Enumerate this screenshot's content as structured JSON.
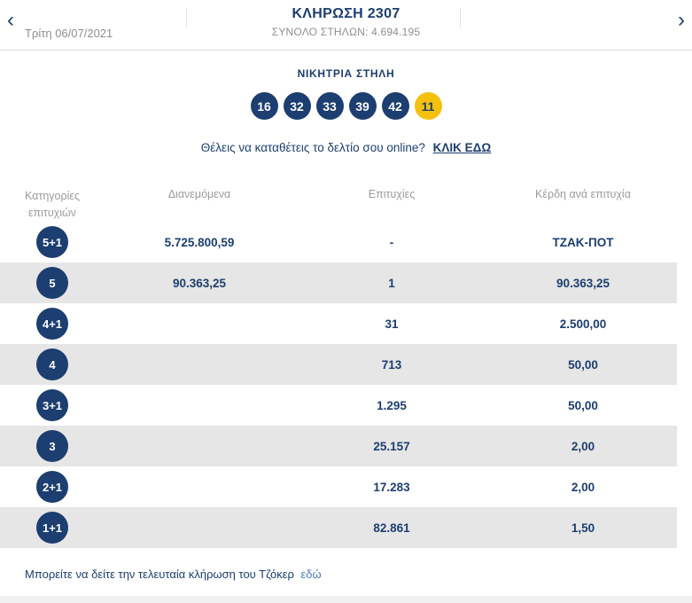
{
  "colors": {
    "navy": "#1c3e70",
    "joker_yellow": "#f4c10f",
    "row_gray": "#e6e6e6",
    "muted_gray": "#8e8e8e"
  },
  "header": {
    "prev_icon": "‹",
    "next_icon": "›",
    "title": "ΚΛΗΡΩΣΗ 2307",
    "date": "Τρίτη 06/07/2021",
    "total_columns": "ΣΥΝΟΛΟ ΣΤΗΛΩΝ: 4.694.195"
  },
  "winning": {
    "title": "ΝΙΚΗΤΡΙΑ ΣΤΗΛΗ",
    "numbers": [
      "16",
      "32",
      "33",
      "39",
      "42"
    ],
    "joker": "11"
  },
  "cta": {
    "text": "Θέλεις να καταθέτεις το δελτίο σου online?",
    "link": "ΚΛΙΚ ΕΔΩ"
  },
  "table": {
    "headers": {
      "category": "Κατηγορίες επιτυχιών",
      "distributed": "Διανεμόμενα",
      "wins": "Επιτυχίες",
      "prize": "Κέρδη ανά επιτυχία"
    },
    "rows": [
      {
        "category": "5+1",
        "distributed": "5.725.800,59",
        "wins": "-",
        "prize": "ΤΖΑΚ-ΠΟΤ"
      },
      {
        "category": "5",
        "distributed": "90.363,25",
        "wins": "1",
        "prize": "90.363,25"
      },
      {
        "category": "4+1",
        "distributed": "",
        "wins": "31",
        "prize": "2.500,00"
      },
      {
        "category": "4",
        "distributed": "",
        "wins": "713",
        "prize": "50,00"
      },
      {
        "category": "3+1",
        "distributed": "",
        "wins": "1.295",
        "prize": "50,00"
      },
      {
        "category": "3",
        "distributed": "",
        "wins": "25.157",
        "prize": "2,00"
      },
      {
        "category": "2+1",
        "distributed": "",
        "wins": "17.283",
        "prize": "2,00"
      },
      {
        "category": "1+1",
        "distributed": "",
        "wins": "82.861",
        "prize": "1,50"
      }
    ]
  },
  "footer": {
    "text": "Μπορείτε να δείτε την τελευταία κλήρωση του Τζόκερ",
    "link": "εδώ"
  }
}
